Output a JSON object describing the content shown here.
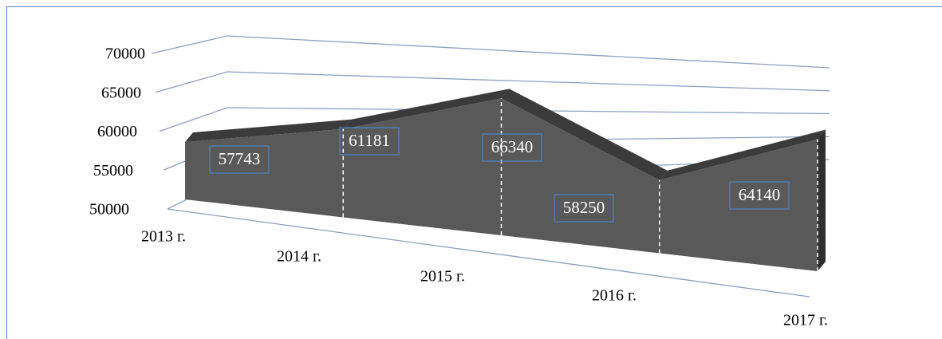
{
  "chart_data": {
    "type": "area3d",
    "categories": [
      "2013 г.",
      "2014 г.",
      "2015 г.",
      "2016 г.",
      "2017 г."
    ],
    "values": [
      57743,
      61181,
      66340,
      58250,
      64140
    ],
    "color": "#595959",
    "ylim": [
      50000,
      70000
    ],
    "yticks": [
      50000,
      55000,
      60000,
      65000,
      70000
    ],
    "grid": true
  }
}
